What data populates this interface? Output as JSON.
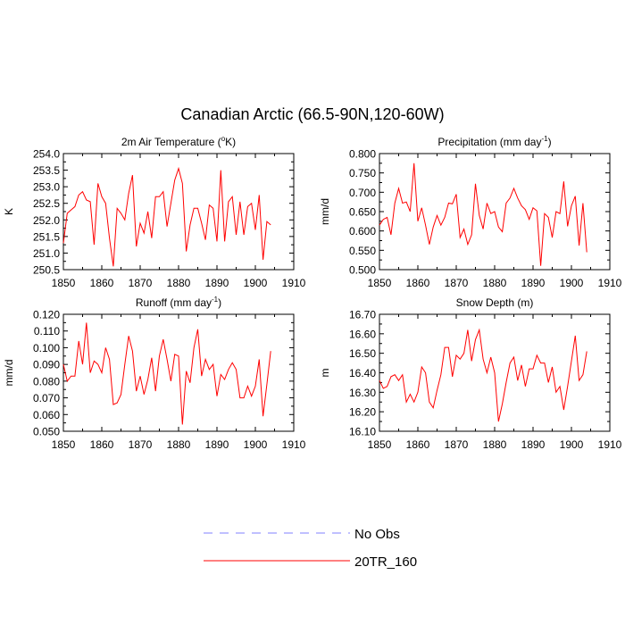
{
  "page": {
    "title": "Canadian Arctic (66.5-90N,120-60W)"
  },
  "legend": {
    "items": [
      {
        "label": "No Obs",
        "color": "#8080ff",
        "style": "dashed"
      },
      {
        "label": "20TR_160",
        "color": "#ff0000",
        "style": "solid"
      }
    ]
  },
  "chart_data": [
    {
      "type": "line",
      "title": "2m Air Temperature (°K)",
      "title_parts": {
        "pre": "2m Air Temperature (",
        "sup": "o",
        "post": "K)"
      },
      "ylabel": "K",
      "xlim": [
        1850,
        1910
      ],
      "ylim": [
        250.5,
        254.0
      ],
      "xticks": [
        1850,
        1860,
        1870,
        1880,
        1890,
        1900,
        1910
      ],
      "yticks": [
        "250.5",
        "251.0",
        "251.5",
        "252.0",
        "252.5",
        "253.0",
        "253.5",
        "254.0"
      ],
      "x": [
        1850,
        1851,
        1852,
        1853,
        1854,
        1855,
        1856,
        1857,
        1858,
        1859,
        1860,
        1861,
        1862,
        1863,
        1864,
        1865,
        1866,
        1867,
        1868,
        1869,
        1870,
        1871,
        1872,
        1873,
        1874,
        1875,
        1876,
        1877,
        1878,
        1879,
        1880,
        1881,
        1882,
        1883,
        1884,
        1885,
        1886,
        1887,
        1888,
        1889,
        1890,
        1891,
        1892,
        1893,
        1894,
        1895,
        1896,
        1897,
        1898,
        1899,
        1900,
        1901,
        1902,
        1903,
        1904
      ],
      "series": [
        {
          "name": "20TR_160",
          "values": [
            251.3,
            252.2,
            252.3,
            252.4,
            252.75,
            252.85,
            252.6,
            252.55,
            251.25,
            253.1,
            252.7,
            252.5,
            251.45,
            250.6,
            252.35,
            252.2,
            252.0,
            252.8,
            253.35,
            251.2,
            251.9,
            251.6,
            252.25,
            251.45,
            252.7,
            252.7,
            252.85,
            251.8,
            252.5,
            253.2,
            253.55,
            253.1,
            251.05,
            251.85,
            252.35,
            252.35,
            251.9,
            251.4,
            252.45,
            252.35,
            251.35,
            253.5,
            251.35,
            252.55,
            252.7,
            251.55,
            252.55,
            251.55,
            252.4,
            252.5,
            251.7,
            252.75,
            250.8,
            251.95,
            251.85
          ]
        }
      ]
    },
    {
      "type": "line",
      "title": "Precipitation (mm day-1)",
      "title_parts": {
        "pre": "Precipitation (mm day",
        "sup": "-1",
        "post": ")"
      },
      "ylabel": "mm/d",
      "xlim": [
        1850,
        1910
      ],
      "ylim": [
        0.5,
        0.8
      ],
      "xticks": [
        1850,
        1860,
        1870,
        1880,
        1890,
        1900,
        1910
      ],
      "yticks": [
        "0.500",
        "0.550",
        "0.600",
        "0.650",
        "0.700",
        "0.750",
        "0.800"
      ],
      "x": [
        1850,
        1851,
        1852,
        1853,
        1854,
        1855,
        1856,
        1857,
        1858,
        1859,
        1860,
        1861,
        1862,
        1863,
        1864,
        1865,
        1866,
        1867,
        1868,
        1869,
        1870,
        1871,
        1872,
        1873,
        1874,
        1875,
        1876,
        1877,
        1878,
        1879,
        1880,
        1881,
        1882,
        1883,
        1884,
        1885,
        1886,
        1887,
        1888,
        1889,
        1890,
        1891,
        1892,
        1893,
        1894,
        1895,
        1896,
        1897,
        1898,
        1899,
        1900,
        1901,
        1902,
        1903,
        1904
      ],
      "series": [
        {
          "name": "20TR_160",
          "values": [
            0.615,
            0.63,
            0.635,
            0.59,
            0.672,
            0.71,
            0.672,
            0.675,
            0.65,
            0.775,
            0.625,
            0.66,
            0.615,
            0.565,
            0.61,
            0.64,
            0.615,
            0.635,
            0.672,
            0.67,
            0.695,
            0.583,
            0.605,
            0.565,
            0.59,
            0.722,
            0.64,
            0.605,
            0.672,
            0.645,
            0.65,
            0.61,
            0.598,
            0.672,
            0.685,
            0.71,
            0.685,
            0.665,
            0.655,
            0.63,
            0.66,
            0.652,
            0.51,
            0.645,
            0.635,
            0.583,
            0.65,
            0.645,
            0.728,
            0.612,
            0.665,
            0.69,
            0.562,
            0.672,
            0.545
          ]
        }
      ]
    },
    {
      "type": "line",
      "title": "Runoff (mm day-1)",
      "title_parts": {
        "pre": "Runoff (mm day",
        "sup": "-1",
        "post": ")"
      },
      "ylabel": "mm/d",
      "xlim": [
        1850,
        1910
      ],
      "ylim": [
        0.05,
        0.12
      ],
      "xticks": [
        1850,
        1860,
        1870,
        1880,
        1890,
        1900,
        1910
      ],
      "yticks": [
        "0.050",
        "0.060",
        "0.070",
        "0.080",
        "0.090",
        "0.100",
        "0.110",
        "0.120"
      ],
      "x": [
        1850,
        1851,
        1852,
        1853,
        1854,
        1855,
        1856,
        1857,
        1858,
        1859,
        1860,
        1861,
        1862,
        1863,
        1864,
        1865,
        1866,
        1867,
        1868,
        1869,
        1870,
        1871,
        1872,
        1873,
        1874,
        1875,
        1876,
        1877,
        1878,
        1879,
        1880,
        1881,
        1882,
        1883,
        1884,
        1885,
        1886,
        1887,
        1888,
        1889,
        1890,
        1891,
        1892,
        1893,
        1894,
        1895,
        1896,
        1897,
        1898,
        1899,
        1900,
        1901,
        1902,
        1903,
        1904
      ],
      "series": [
        {
          "name": "20TR_160",
          "values": [
            0.09,
            0.08,
            0.083,
            0.083,
            0.104,
            0.09,
            0.115,
            0.085,
            0.092,
            0.09,
            0.085,
            0.1,
            0.093,
            0.066,
            0.067,
            0.072,
            0.09,
            0.107,
            0.098,
            0.074,
            0.083,
            0.072,
            0.081,
            0.094,
            0.074,
            0.095,
            0.105,
            0.093,
            0.08,
            0.096,
            0.095,
            0.054,
            0.086,
            0.079,
            0.1,
            0.111,
            0.083,
            0.093,
            0.087,
            0.09,
            0.071,
            0.084,
            0.081,
            0.087,
            0.091,
            0.087,
            0.07,
            0.07,
            0.077,
            0.071,
            0.077,
            0.093,
            0.059,
            0.078,
            0.098
          ]
        }
      ]
    },
    {
      "type": "line",
      "title": "Snow Depth (m)",
      "title_parts": {
        "pre": "Snow Depth (m)",
        "sup": "",
        "post": ""
      },
      "ylabel": "m",
      "xlim": [
        1850,
        1910
      ],
      "ylim": [
        16.1,
        16.7
      ],
      "xticks": [
        1850,
        1860,
        1870,
        1880,
        1890,
        1900,
        1910
      ],
      "yticks": [
        "16.10",
        "16.20",
        "16.30",
        "16.40",
        "16.50",
        "16.60",
        "16.70"
      ],
      "x": [
        1850,
        1851,
        1852,
        1853,
        1854,
        1855,
        1856,
        1857,
        1858,
        1859,
        1860,
        1861,
        1862,
        1863,
        1864,
        1865,
        1866,
        1867,
        1868,
        1869,
        1870,
        1871,
        1872,
        1873,
        1874,
        1875,
        1876,
        1877,
        1878,
        1879,
        1880,
        1881,
        1882,
        1883,
        1884,
        1885,
        1886,
        1887,
        1888,
        1889,
        1890,
        1891,
        1892,
        1893,
        1894,
        1895,
        1896,
        1897,
        1898,
        1899,
        1900,
        1901,
        1902,
        1903,
        1904
      ],
      "series": [
        {
          "name": "20TR_160",
          "values": [
            16.36,
            16.32,
            16.33,
            16.38,
            16.39,
            16.36,
            16.39,
            16.25,
            16.29,
            16.25,
            16.3,
            16.43,
            16.4,
            16.25,
            16.22,
            16.31,
            16.39,
            16.53,
            16.53,
            16.38,
            16.49,
            16.47,
            16.5,
            16.62,
            16.46,
            16.57,
            16.62,
            16.47,
            16.4,
            16.48,
            16.4,
            16.15,
            16.24,
            16.35,
            16.45,
            16.48,
            16.36,
            16.44,
            16.33,
            16.42,
            16.42,
            16.49,
            16.45,
            16.45,
            16.35,
            16.43,
            16.3,
            16.33,
            16.21,
            16.33,
            16.46,
            16.59,
            16.36,
            16.39,
            16.51
          ]
        }
      ]
    }
  ]
}
